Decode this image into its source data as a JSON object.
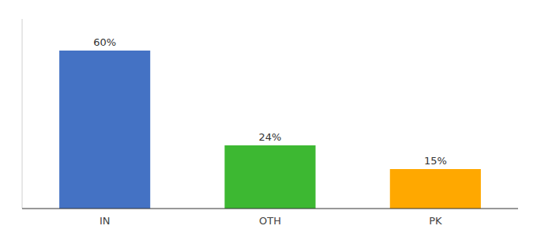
{
  "chart_data": {
    "type": "bar",
    "categories": [
      "IN",
      "OTH",
      "PK"
    ],
    "values": [
      60,
      24,
      15
    ],
    "value_labels": [
      "60%",
      "24%",
      "15%"
    ],
    "colors": [
      "#4472C4",
      "#3DB832",
      "#FFA800"
    ],
    "ylim": [
      0,
      72
    ],
    "data_labels": true,
    "tick_labels": "x"
  }
}
